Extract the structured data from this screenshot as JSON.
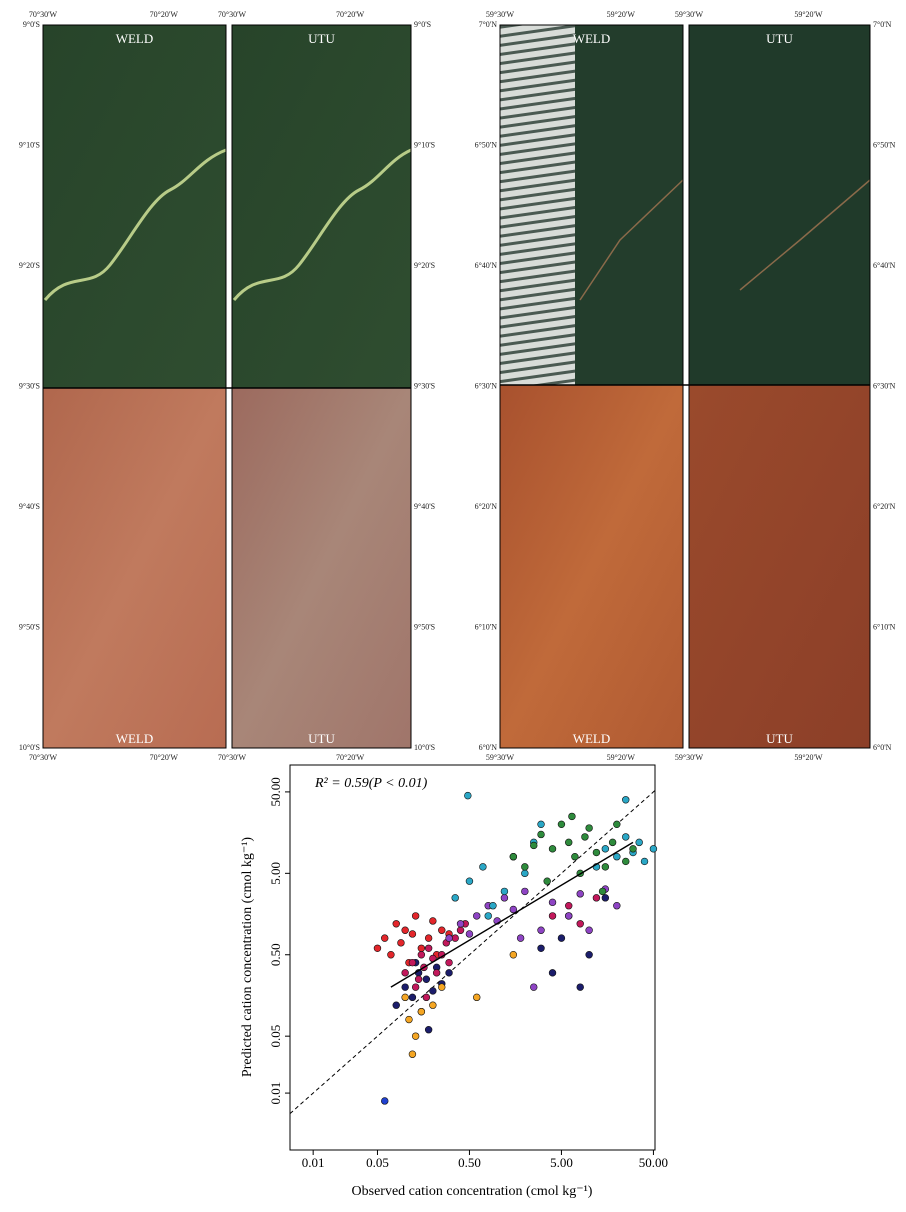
{
  "maps": [
    {
      "labels_top": [
        "WELD",
        "UTU"
      ],
      "labels_bottom": [
        "WELD",
        "UTU"
      ],
      "x_ticks_top": [
        "70°30'W",
        "70°20'W",
        "70°30'W",
        "70°20'W"
      ],
      "x_ticks_bottom": [
        "70°30'W",
        "70°20'W",
        "70°30'W",
        "70°20'W"
      ],
      "y_ticks_left": [
        "9°0'S",
        "9°10'S",
        "9°20'S",
        "9°30'S",
        "9°40'S",
        "9°50'S",
        "10°0'S"
      ],
      "y_ticks_right": [
        "9°0'S",
        "9°10'S",
        "9°20'S",
        "9°30'S",
        "9°40'S",
        "9°50'S",
        "10°0'S"
      ]
    },
    {
      "labels_top": [
        "WELD",
        "UTU"
      ],
      "labels_bottom": [
        "WELD",
        "UTU"
      ],
      "x_ticks_top": [
        "59°30'W",
        "59°20'W",
        "59°30'W",
        "59°20'W"
      ],
      "x_ticks_bottom": [
        "59°30'W",
        "59°20'W",
        "59°30'W",
        "59°20'W"
      ],
      "y_ticks_left": [
        "7°0'N",
        "6°50'N",
        "6°40'N",
        "6°30'N",
        "6°20'N",
        "6°10'N",
        "6°0'N"
      ],
      "y_ticks_right": [
        "7°0'N",
        "6°50'N",
        "6°40'N",
        "6°30'N",
        "6°20'N",
        "6°10'N",
        "6°0'N"
      ]
    }
  ],
  "chart_data": {
    "type": "scatter",
    "annotation": "R² = 0.59(P < 0.01)",
    "x_label": "Observed cation concentration (cmol kg⁻¹)",
    "y_label": "Predicted cation concentration (cmol kg⁻¹)",
    "log_x": true,
    "log_y": true,
    "xlim": [
      0.0056,
      52
    ],
    "ylim": [
      0.002,
      107
    ],
    "xticks": [
      0.01,
      0.05,
      {
        "value": 0.5,
        "label": "0.50"
      },
      {
        "value": 5,
        "label": "5.00"
      },
      {
        "value": 50,
        "label": "50.00"
      }
    ],
    "yticks": [
      0.01,
      0.05,
      {
        "value": 0.5,
        "label": "0.50"
      },
      {
        "value": 5,
        "label": "5.00"
      },
      {
        "value": 50,
        "label": "50.00"
      }
    ],
    "fit": {
      "x": [
        0.07,
        30
      ],
      "y": [
        0.2,
        12
      ]
    },
    "series": [
      {
        "color": "#e3262b",
        "x": [
          0.05,
          0.06,
          0.07,
          0.08,
          0.09,
          0.1,
          0.12,
          0.13,
          0.15,
          0.18,
          0.2,
          0.25,
          0.3,
          0.22,
          0.11
        ],
        "y": [
          0.6,
          0.8,
          0.5,
          1.2,
          0.7,
          1.0,
          0.9,
          1.5,
          0.6,
          0.8,
          1.3,
          1.0,
          0.9,
          0.5,
          0.4
        ]
      },
      {
        "color": "#1b1d6b",
        "x": [
          0.08,
          0.1,
          0.12,
          0.14,
          0.15,
          0.17,
          0.2,
          0.22,
          0.25,
          0.3,
          0.13,
          0.18,
          3,
          4,
          6,
          8,
          10,
          15,
          5
        ],
        "y": [
          0.12,
          0.2,
          0.15,
          0.3,
          0.1,
          0.25,
          0.18,
          0.35,
          0.22,
          0.3,
          0.4,
          0.06,
          0.6,
          0.3,
          1.5,
          0.2,
          0.5,
          2.5,
          0.8
        ]
      },
      {
        "color": "#c2185b",
        "x": [
          0.1,
          0.12,
          0.14,
          0.15,
          0.16,
          0.18,
          0.2,
          0.22,
          0.25,
          0.28,
          0.3,
          0.35,
          0.4,
          0.45,
          0.13,
          0.17,
          4,
          6,
          8,
          12
        ],
        "y": [
          0.3,
          0.4,
          0.25,
          0.5,
          0.35,
          0.6,
          0.45,
          0.3,
          0.5,
          0.7,
          0.4,
          0.8,
          1.0,
          1.2,
          0.2,
          0.15,
          1.5,
          2.0,
          1.2,
          2.5
        ]
      },
      {
        "color": "#8e44c4",
        "x": [
          0.3,
          0.4,
          0.5,
          0.6,
          0.8,
          1.0,
          1.2,
          1.5,
          2.0,
          2.5,
          3,
          4,
          6,
          8,
          10,
          15,
          20,
          1.8
        ],
        "y": [
          0.8,
          1.2,
          0.9,
          1.5,
          2.0,
          1.3,
          2.5,
          1.8,
          3.0,
          0.2,
          1.0,
          2.2,
          1.5,
          2.8,
          1.0,
          3.2,
          2.0,
          0.8
        ]
      },
      {
        "color": "#2aa7c6",
        "x": [
          0.48,
          0.35,
          0.5,
          0.7,
          0.9,
          1.2,
          1.5,
          2,
          2.5,
          3,
          0.8,
          12,
          15,
          20,
          25,
          30,
          40,
          50,
          25,
          35
        ],
        "y": [
          45,
          2.5,
          4,
          6,
          2,
          3,
          8,
          5,
          12,
          20,
          1.5,
          6,
          10,
          8,
          14,
          9,
          7,
          10,
          40,
          12
        ]
      },
      {
        "color": "#2e8b3c",
        "x": [
          1.5,
          2,
          3,
          4,
          5,
          6,
          7,
          8,
          10,
          12,
          15,
          18,
          20,
          25,
          30,
          3.5,
          2.5,
          9,
          14,
          6.5
        ],
        "y": [
          8,
          6,
          15,
          10,
          20,
          12,
          8,
          5,
          18,
          9,
          6,
          12,
          20,
          7,
          10,
          4,
          11,
          14,
          3,
          25
        ]
      },
      {
        "color": "#f5a623",
        "x": [
          0.1,
          0.12,
          0.15,
          0.2,
          0.25,
          0.6,
          0.13,
          0.11,
          1.5
        ],
        "y": [
          0.15,
          0.03,
          0.1,
          0.12,
          0.2,
          0.15,
          0.05,
          0.08,
          0.5
        ]
      },
      {
        "color": "#2040d0",
        "x": [
          0.06
        ],
        "y": [
          0.008
        ]
      }
    ]
  }
}
